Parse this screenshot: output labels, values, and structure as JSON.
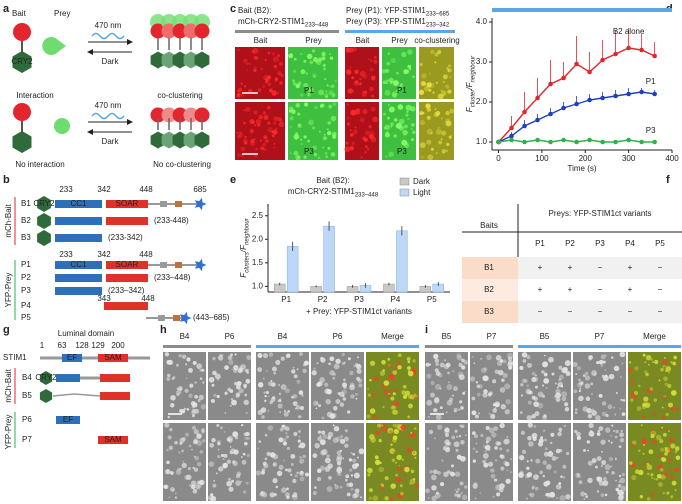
{
  "panel_labels": [
    "a",
    "b",
    "c",
    "d",
    "e",
    "f",
    "g",
    "h",
    "i"
  ],
  "a": {
    "bait": "Bait",
    "prey": "Prey",
    "cry2": "CRY2",
    "light": "470 nm",
    "dark": "Dark",
    "top_left": "Interaction",
    "top_right": "co-clustering",
    "bottom_left": "No interaction",
    "bottom_right": "No co-clustering"
  },
  "b": {
    "bait_group": "mCh-Bait",
    "prey_group": "YFP-Prey",
    "bait_positions": [
      "233",
      "342",
      "448",
      "685"
    ],
    "domains": [
      "CRY2",
      "CC1",
      "SOAR"
    ],
    "bait_rows": [
      {
        "name": "B1"
      },
      {
        "name": "B2",
        "range": "(233-448)"
      },
      {
        "name": "B3",
        "range": "(233-342)"
      }
    ],
    "prey_positions": [
      "233",
      "342",
      "448"
    ],
    "prey_rows": [
      {
        "name": "P1"
      },
      {
        "name": "P2",
        "range": "(233–448)"
      },
      {
        "name": "P3",
        "range": "(233–342)"
      },
      {
        "name": "P4",
        "start": "343",
        "end": "448"
      },
      {
        "name": "P5",
        "range": "(443–685)"
      }
    ]
  },
  "c": {
    "bait_line1": "Bait (B2):",
    "bait_line2": "mCh-CRY2-STIM1",
    "bait_sub": "233–448",
    "prey_line1": "Prey (P1): YFP-STIM1",
    "prey_sub1": "233–685",
    "prey_line2": "Prey (P3): YFP-STIM1",
    "prey_sub2": "233–342",
    "col_labels": [
      "Bait",
      "Prey",
      "Bait",
      "Prey",
      "co-clustering"
    ],
    "row_labels": [
      "P1",
      "P3"
    ]
  },
  "chart_data": [
    {
      "type": "line",
      "xlabel": "Time (s)",
      "ylabel_parts": [
        "F",
        "cluster",
        "/F",
        "neighbour"
      ],
      "x": [
        0,
        30,
        60,
        90,
        120,
        150,
        180,
        210,
        240,
        270,
        300,
        330,
        360
      ],
      "series": [
        {
          "name": "B2 alone",
          "color": "#e3262d",
          "values": [
            1.0,
            1.35,
            1.75,
            2.1,
            2.45,
            2.6,
            2.95,
            2.75,
            3.05,
            3.2,
            3.35,
            3.3,
            3.15
          ],
          "errors": [
            0,
            0.3,
            0.5,
            0.5,
            0.6,
            0.4,
            0.7,
            0.5,
            0.5,
            0.6,
            0.5,
            0.4,
            0.35
          ]
        },
        {
          "name": "P1",
          "color": "#1f3fbf",
          "values": [
            1.0,
            1.15,
            1.4,
            1.55,
            1.7,
            1.85,
            1.95,
            2.05,
            2.1,
            2.15,
            2.2,
            2.25,
            2.2
          ],
          "errors": [
            0,
            0.1,
            0.15,
            0.15,
            0.15,
            0.15,
            0.2,
            0.15,
            0.15,
            0.15,
            0.15,
            0.1,
            0.1
          ]
        },
        {
          "name": "P3",
          "color": "#2db34a",
          "values": [
            1.0,
            1.05,
            1.0,
            1.05,
            1.0,
            1.05,
            1.0,
            1.05,
            1.0,
            1.0,
            1.05,
            1.0,
            1.0
          ]
        }
      ],
      "xlim": [
        -15,
        400
      ],
      "xticks": [
        0,
        100,
        200,
        300,
        400
      ],
      "ylim": [
        0.8,
        4.1
      ],
      "yticks": [
        {
          "value": 1,
          "label": "1.0"
        },
        {
          "value": 2,
          "label": "2.0"
        },
        {
          "value": 3,
          "label": "3.0"
        },
        {
          "value": 4,
          "label": "4.0"
        }
      ]
    },
    {
      "type": "bar",
      "title_line1": "Bait (B2):",
      "title_line2": "mCh-CRY2-STIM1",
      "title_sub": "233–448",
      "categories": [
        "P1",
        "P2",
        "P3",
        "P4",
        "P5"
      ],
      "series": [
        {
          "name": "Dark",
          "color": "#c9c9c9",
          "values": [
            1.05,
            1.0,
            1.0,
            1.05,
            1.0
          ],
          "errors": [
            0.03,
            0.02,
            0.03,
            0.03,
            0.03
          ]
        },
        {
          "name": "Light",
          "color": "#bdd8f6",
          "values": [
            1.85,
            2.28,
            1.02,
            2.18,
            1.05
          ],
          "errors": [
            0.1,
            0.1,
            0.05,
            0.1,
            0.04
          ]
        }
      ],
      "ylim": [
        0.88,
        2.75
      ],
      "yticks": [
        {
          "value": 1,
          "label": "1.0"
        },
        {
          "value": 1.5,
          "label": "1.5"
        },
        {
          "value": 2,
          "label": "2.0"
        },
        {
          "value": 2.5,
          "label": "2.5"
        }
      ],
      "xlabel": "+ Prey: YFP-STIM1ct variants",
      "ylabel_parts": [
        "F",
        "clusters",
        "/F",
        "neighbour"
      ],
      "legend": "upper right"
    }
  ],
  "f": {
    "title": "Preys: YFP-STIM1ct variants",
    "row_header": "Baits",
    "columns": [
      "P1",
      "P2",
      "P3",
      "P4",
      "P5"
    ],
    "rows": [
      [
        "B1",
        "+",
        "+",
        "−",
        "+",
        "−"
      ],
      [
        "B2",
        "+",
        "+",
        "−",
        "+",
        "−"
      ],
      [
        "B3",
        "−",
        "−",
        "−",
        "−",
        "−"
      ]
    ]
  },
  "g": {
    "title": "Luminal domain",
    "positions": [
      "1",
      "63",
      "128",
      "129",
      "200"
    ],
    "constructs": [
      "STIM1",
      "B4",
      "B5",
      "P6",
      "P7"
    ],
    "domains": [
      "EF",
      "SAM",
      "CRY2"
    ],
    "bait_group": "mCh-Bait",
    "prey_group": "YFP-Prey"
  },
  "h": {
    "columns": [
      "B4",
      "P6",
      "B4",
      "P6",
      "Merge"
    ]
  },
  "i": {
    "columns": [
      "B5",
      "P7",
      "B5",
      "P7",
      "Merge"
    ]
  }
}
